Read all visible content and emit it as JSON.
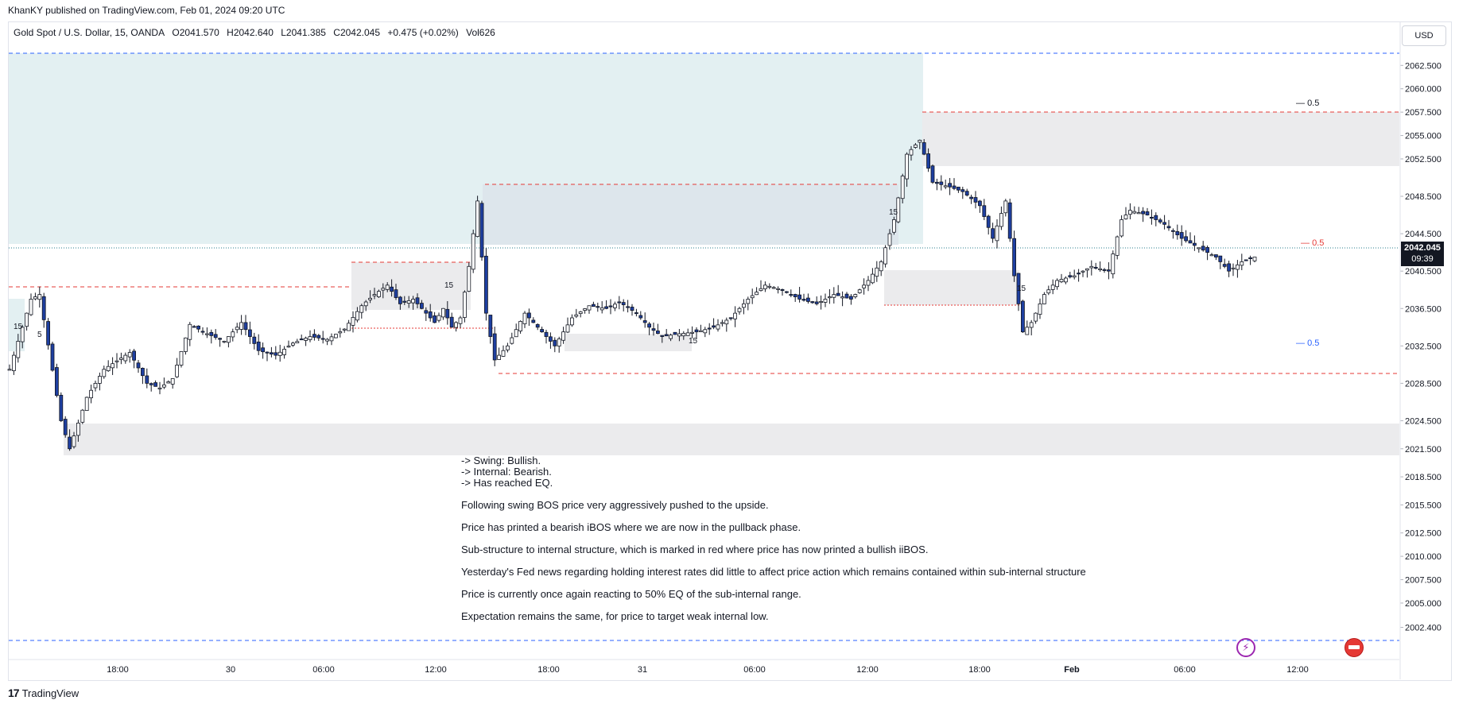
{
  "publisher": "KhanKY published on TradingView.com, Feb 01, 2024 09:20 UTC",
  "brand": "TradingView",
  "brand_logo": "17",
  "currency_button": "USD",
  "header": {
    "symbol": "Gold Spot / U.S. Dollar, 15, OANDA",
    "open": "O2041.570",
    "high": "H2042.640",
    "low": "L2041.385",
    "close": "C2042.045",
    "change": "+0.475 (+0.02%)",
    "volume": "Vol626"
  },
  "last_price": {
    "value": "2042.045",
    "countdown": "09:39"
  },
  "eq_labels": {
    "top": "0.5",
    "mid": "0.5",
    "low": "0.5"
  },
  "notes": {
    "lines": [
      "-> Swing: Bullish.",
      "-> Internal: Bearish.",
      "-> Has reached EQ."
    ],
    "paragraphs": [
      "Following swing BOS price very aggressively pushed to the upside.",
      "Price has printed a bearish iBOS where we are now in the pullback phase.",
      "Sub-structure to internal structure, which is marked in red where price has now printed a bullish iiBOS.",
      "Yesterday's Fed news regarding holding interest rates did little to affect price action which remains contained within sub-internal structure",
      "Price is currently once again reacting to 50% EQ of the sub-internal range.",
      "Expectation remains the same, for price to target weak internal low."
    ]
  },
  "chart_labels": [
    "15",
    "15",
    "15",
    "15",
    "15",
    "5"
  ],
  "icons": {
    "bolt": "lightning-icon",
    "flag": "us-flag-icon"
  },
  "colors": {
    "up": "#ffffff",
    "down": "#1e3fa0",
    "wick": "#131722",
    "red": "#e53935",
    "blue": "#2962ff",
    "teal_zone": "#e3f0f2",
    "grey_zone": "#ebebed"
  },
  "chart_data": {
    "type": "candlestick",
    "title": "Gold Spot / U.S. Dollar, 15, OANDA",
    "y_axis": {
      "ylim": [
        2001.0,
        2063.8
      ],
      "ticks": [
        "2062.500",
        "2060.000",
        "2057.500",
        "2055.000",
        "2052.500",
        "2048.500",
        "2044.500",
        "2040.500",
        "2036.500",
        "2032.500",
        "2028.500",
        "2024.500",
        "2021.500",
        "2018.500",
        "2015.500",
        "2012.500",
        "2010.000",
        "2007.500",
        "2005.000",
        "2002.400"
      ]
    },
    "x_axis": {
      "ticks": [
        "18:00",
        "30",
        "06:00",
        "12:00",
        "18:00",
        "31",
        "06:00",
        "12:00",
        "18:00",
        "Feb",
        "06:00",
        "12:00"
      ]
    },
    "swing_high": 2056.0,
    "internal_low": 2029.0,
    "last": 2042.045,
    "path": [
      [
        0,
        2030.0
      ],
      [
        5,
        2037.5
      ],
      [
        7,
        2038.0
      ],
      [
        12,
        2024.5
      ],
      [
        14,
        2021.5
      ],
      [
        18,
        2027.0
      ],
      [
        22,
        2030.0
      ],
      [
        28,
        2031.8
      ],
      [
        32,
        2028.5
      ],
      [
        35,
        2028.0
      ],
      [
        38,
        2029.0
      ],
      [
        42,
        2034.8
      ],
      [
        46,
        2033.8
      ],
      [
        50,
        2033.0
      ],
      [
        54,
        2035.0
      ],
      [
        58,
        2032.0
      ],
      [
        62,
        2031.5
      ],
      [
        66,
        2032.8
      ],
      [
        70,
        2033.5
      ],
      [
        74,
        2033.2
      ],
      [
        78,
        2034.3
      ],
      [
        82,
        2036.8
      ],
      [
        85,
        2038.0
      ],
      [
        88,
        2039.0
      ],
      [
        91,
        2037.0
      ],
      [
        94,
        2037.5
      ],
      [
        97,
        2036.0
      ],
      [
        99,
        2035.0
      ],
      [
        101,
        2036.5
      ],
      [
        103,
        2034.5
      ],
      [
        105,
        2035.5
      ],
      [
        107,
        2041.0
      ],
      [
        109,
        2048.0
      ],
      [
        111,
        2036.0
      ],
      [
        113,
        2031.0
      ],
      [
        116,
        2032.5
      ],
      [
        120,
        2036.0
      ],
      [
        124,
        2034.0
      ],
      [
        127,
        2032.5
      ],
      [
        131,
        2035.5
      ],
      [
        135,
        2036.8
      ],
      [
        139,
        2036.5
      ],
      [
        142,
        2037.2
      ],
      [
        146,
        2036.0
      ],
      [
        149,
        2034.5
      ],
      [
        152,
        2033.5
      ],
      [
        156,
        2033.8
      ],
      [
        160,
        2034.0
      ],
      [
        164,
        2034.5
      ],
      [
        168,
        2035.5
      ],
      [
        172,
        2037.5
      ],
      [
        176,
        2039.0
      ],
      [
        180,
        2038.5
      ],
      [
        184,
        2037.5
      ],
      [
        188,
        2037.0
      ],
      [
        192,
        2038.0
      ],
      [
        196,
        2037.5
      ],
      [
        200,
        2039.5
      ],
      [
        203,
        2041.5
      ],
      [
        206,
        2046.0
      ],
      [
        209,
        2053.0
      ],
      [
        212,
        2054.5
      ],
      [
        215,
        2050.0
      ],
      [
        219,
        2049.5
      ],
      [
        222,
        2049.0
      ],
      [
        226,
        2047.5
      ],
      [
        229,
        2044.0
      ],
      [
        232,
        2048.0
      ],
      [
        234,
        2040.0
      ],
      [
        236,
        2034.0
      ],
      [
        238,
        2035.0
      ],
      [
        241,
        2038.0
      ],
      [
        244,
        2039.5
      ],
      [
        248,
        2040.0
      ],
      [
        252,
        2041.0
      ],
      [
        256,
        2040.5
      ],
      [
        259,
        2046.0
      ],
      [
        261,
        2047.0
      ],
      [
        265,
        2046.5
      ],
      [
        269,
        2045.5
      ],
      [
        273,
        2044.0
      ],
      [
        277,
        2043.0
      ],
      [
        281,
        2042.0
      ],
      [
        284,
        2040.5
      ],
      [
        287,
        2041.5
      ],
      [
        290,
        2042.0
      ]
    ]
  }
}
